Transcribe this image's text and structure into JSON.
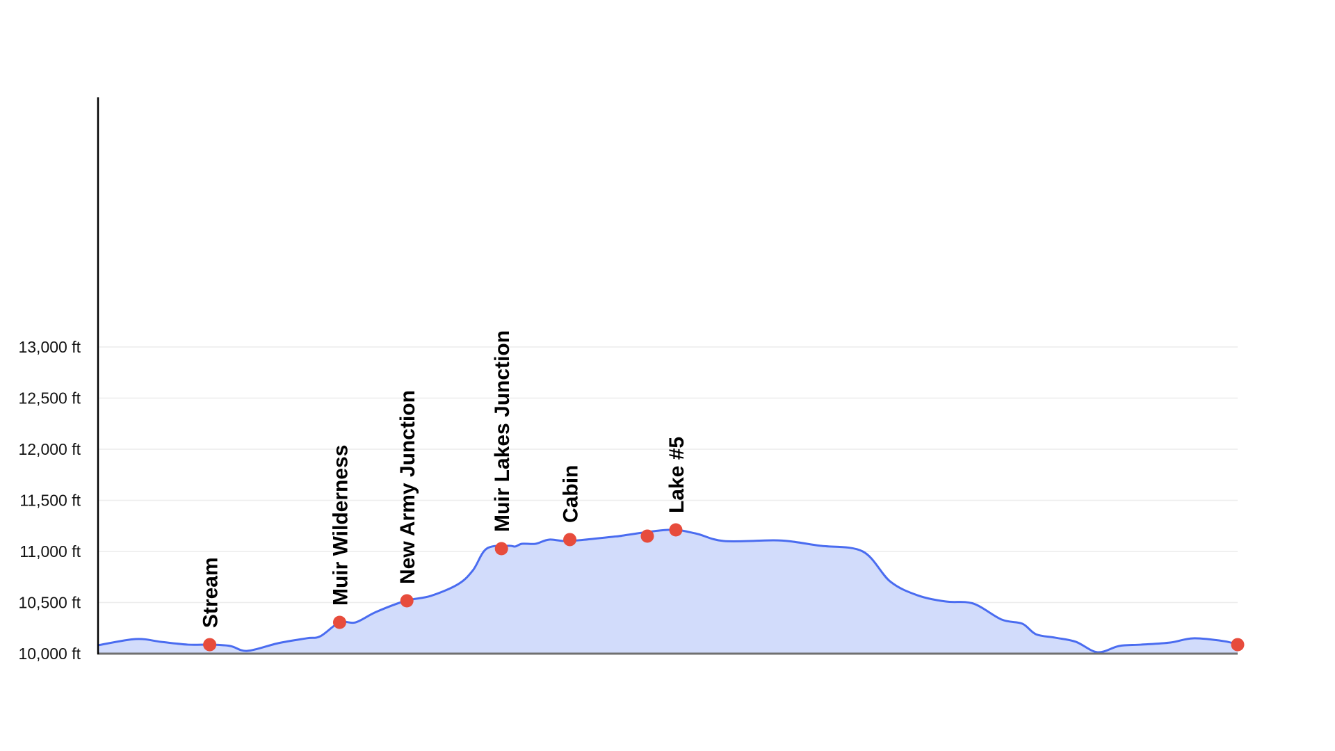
{
  "chart_data": {
    "type": "area",
    "title": "",
    "xlabel": "",
    "ylabel": "",
    "ylim": [
      10000,
      13000
    ],
    "y_ticks": [
      "10,000 ft",
      "10,500 ft",
      "11,000 ft",
      "11,500 ft",
      "12,000 ft",
      "12,500 ft",
      "13,000 ft"
    ],
    "y_tick_values": [
      10000,
      10500,
      11000,
      11500,
      12000,
      12500,
      13000
    ],
    "grid": true,
    "legend": null,
    "colors": {
      "line": "#4a6cf0",
      "fill": "#d2dcfb",
      "marker": "#e74c3c",
      "axis": "#000000",
      "baseline": "#707070"
    },
    "profile": {
      "description": "Elevation profile (x = fraction of trail distance 0..1, y = elevation ft)",
      "x": [
        0.0,
        0.033,
        0.055,
        0.079,
        0.098,
        0.116,
        0.131,
        0.158,
        0.183,
        0.195,
        0.212,
        0.226,
        0.244,
        0.27,
        0.292,
        0.316,
        0.341,
        0.329,
        0.36,
        0.372,
        0.384,
        0.396,
        0.366,
        0.414,
        0.457,
        0.457,
        0.5,
        0.524,
        0.549,
        0.593,
        0.61,
        0.634,
        0.671,
        0.695,
        0.719,
        0.744,
        0.768,
        0.793,
        0.811,
        0.823,
        0.84,
        0.858,
        0.877,
        0.896,
        0.915,
        0.941,
        0.961,
        0.988,
        1.0
      ],
      "y": [
        10082,
        10143,
        10116,
        10088,
        10088,
        10075,
        10027,
        10102,
        10150,
        10170,
        10306,
        10306,
        10408,
        10517,
        10565,
        10680,
        11027,
        10816,
        11055,
        11075,
        11075,
        11116,
        11048,
        11102,
        11150,
        11150,
        11211,
        11177,
        11102,
        11109,
        11095,
        11055,
        11000,
        10707,
        10571,
        10510,
        10490,
        10333,
        10293,
        10190,
        10156,
        10116,
        10014,
        10075,
        10088,
        10109,
        10150,
        10122,
        10088
      ]
    },
    "waypoints": [
      {
        "label": "Stream",
        "x": 0.098,
        "elevation_ft": 10088
      },
      {
        "label": "Muir Wilderness",
        "x": 0.212,
        "elevation_ft": 10306
      },
      {
        "label": "New Army Junction",
        "x": 0.271,
        "elevation_ft": 10517
      },
      {
        "label": "Muir Lakes Junction",
        "x": 0.354,
        "elevation_ft": 11027
      },
      {
        "label": "Cabin",
        "x": 0.414,
        "elevation_ft": 11116
      },
      {
        "label": "",
        "x": 0.482,
        "elevation_ft": 11150
      },
      {
        "label": "Lake #5",
        "x": 0.507,
        "elevation_ft": 11211
      },
      {
        "label": "",
        "x": 1.0,
        "elevation_ft": 10088
      }
    ]
  }
}
